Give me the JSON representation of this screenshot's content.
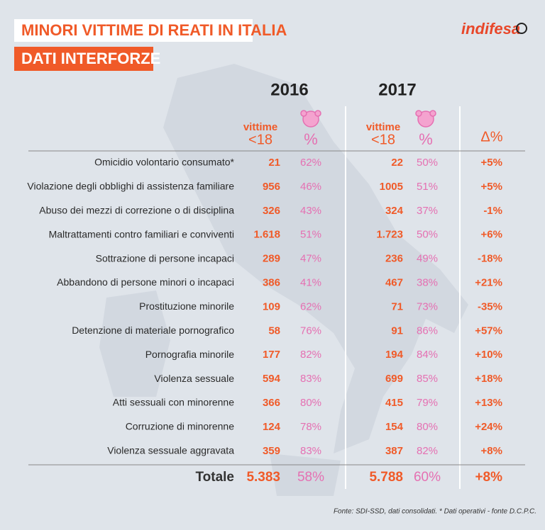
{
  "header": {
    "title": "MINORI VITTIME DI REATI IN ITALIA",
    "subtitle": "DATI INTERFORZE",
    "logo": "indifesa"
  },
  "table": {
    "years": [
      "2016",
      "2017"
    ],
    "columns": {
      "count": [
        "vittime",
        "<18"
      ],
      "percent": "%",
      "delta": "Δ%"
    },
    "rows": [
      [
        "Omicidio volontario consumato*",
        "21",
        "62%",
        "22",
        "50%",
        "+5%"
      ],
      [
        "Violazione degli obblighi di assistenza familiare",
        "956",
        "46%",
        "1005",
        "51%",
        "+5%"
      ],
      [
        "Abuso dei mezzi di correzione o di disciplina",
        "326",
        "43%",
        "324",
        "37%",
        "-1%"
      ],
      [
        "Maltrattamenti contro familiari e conviventi",
        "1.618",
        "51%",
        "1.723",
        "50%",
        "+6%"
      ],
      [
        "Sottrazione di persone incapaci",
        "289",
        "47%",
        "236",
        "49%",
        "-18%"
      ],
      [
        "Abbandono di persone minori o incapaci",
        "386",
        "41%",
        "467",
        "38%",
        "+21%"
      ],
      [
        "Prostituzione minorile",
        "109",
        "62%",
        "71",
        "73%",
        "-35%"
      ],
      [
        "Detenzione di materiale pornografico",
        "58",
        "76%",
        "91",
        "86%",
        "+57%"
      ],
      [
        "Pornografia minorile",
        "177",
        "82%",
        "194",
        "84%",
        "+10%"
      ],
      [
        "Violenza sessuale",
        "594",
        "83%",
        "699",
        "85%",
        "+18%"
      ],
      [
        "Atti sessuali con minorenne",
        "366",
        "80%",
        "415",
        "79%",
        "+13%"
      ],
      [
        "Corruzione di minorenne",
        "124",
        "78%",
        "154",
        "80%",
        "+24%"
      ],
      [
        "Violenza sessuale aggravata",
        "359",
        "83%",
        "387",
        "82%",
        "+8%"
      ]
    ],
    "total": [
      "Totale",
      "5.383",
      "58%",
      "5.788",
      "60%",
      "+8%"
    ]
  },
  "footer": "Fonte: SDI-SSD, dati consolidati.  * Dati operativi - fonte D.C.P.C."
}
